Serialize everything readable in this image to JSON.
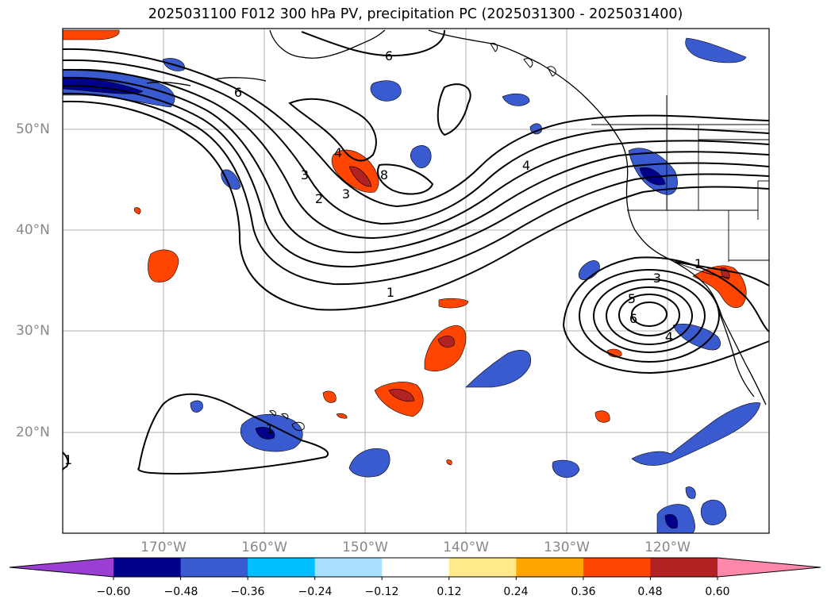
{
  "title": "2025031100 F012 300 hPa PV, precipitation PC (2025031300 - 2025031400)",
  "map": {
    "lon_range": [
      -180,
      -110
    ],
    "lat_range": [
      10,
      60
    ],
    "lon_ticks": [
      {
        "value": -170,
        "label": "170°W"
      },
      {
        "value": -160,
        "label": "160°W"
      },
      {
        "value": -150,
        "label": "150°W"
      },
      {
        "value": -140,
        "label": "140°W"
      },
      {
        "value": -130,
        "label": "130°W"
      },
      {
        "value": -120,
        "label": "120°W"
      }
    ],
    "lat_ticks": [
      {
        "value": 50,
        "label": "50°N"
      },
      {
        "value": 40,
        "label": "40°N"
      },
      {
        "value": 30,
        "label": "30°N"
      },
      {
        "value": 20,
        "label": "20°N"
      }
    ],
    "contour_labels": [
      "6",
      "6",
      "4",
      "3",
      "2",
      "3",
      "8",
      "4",
      "1",
      "1",
      "3",
      "5",
      "6",
      "4",
      "1",
      "1"
    ]
  },
  "colorbar": {
    "colors": [
      "#9b3fd4",
      "#00008b",
      "#3a5bd0",
      "#00bfff",
      "#aadfff",
      "#ffffff",
      "#ffe98a",
      "#ffa500",
      "#ff4500",
      "#b22222",
      "#ff88aa"
    ],
    "ticks": [
      "−0.60",
      "−0.48",
      "−0.36",
      "−0.24",
      "−0.12",
      "0.12",
      "0.24",
      "0.36",
      "0.48",
      "0.60"
    ]
  }
}
